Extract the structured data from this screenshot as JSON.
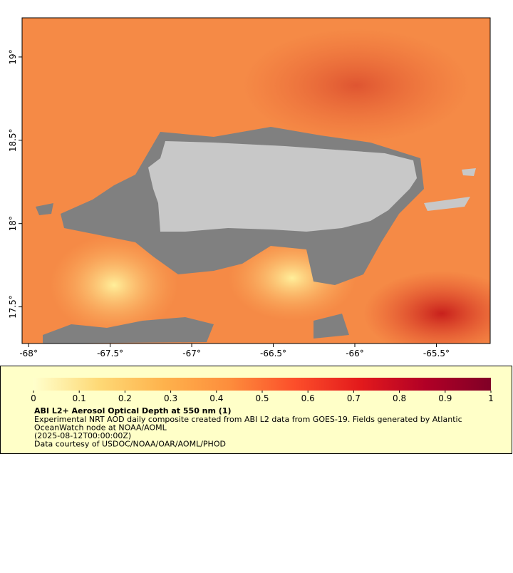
{
  "map": {
    "xlim": [
      -68.04,
      -65.17
    ],
    "ylim": [
      17.28,
      19.235
    ],
    "xticks": [
      {
        "value": -68,
        "label": "-68°"
      },
      {
        "value": -67.5,
        "label": "-67.5°"
      },
      {
        "value": -67,
        "label": "-67°"
      },
      {
        "value": -66.5,
        "label": "-66.5°"
      },
      {
        "value": -66,
        "label": "-66°"
      },
      {
        "value": -65.5,
        "label": "-65.5°"
      }
    ],
    "yticks": [
      {
        "value": 17.5,
        "label": "17.5°"
      },
      {
        "value": 18,
        "label": "18°"
      },
      {
        "value": 18.5,
        "label": "18.5°"
      },
      {
        "value": 19,
        "label": "19°"
      }
    ]
  },
  "colorbar": {
    "lim": [
      0,
      1
    ],
    "ticks": [
      0,
      0.1,
      0.2,
      0.3,
      0.4,
      0.5,
      0.6,
      0.7,
      0.8,
      0.9,
      1
    ],
    "colors": [
      "#ffffcc",
      "#fed976",
      "#feb24c",
      "#fd8d3c",
      "#fc4e2a",
      "#e31a1c",
      "#b10026",
      "#800026"
    ]
  },
  "caption": {
    "title": "ABI L2+ Aerosol Optical Depth at 550 nm (1)",
    "lines": [
      "Experimental NRT AOD daily composite created from ABI L2 data from GOES-19. Fields generated by Atlantic",
      "OceanWatch node at NOAA/AOML",
      "(2025-08-12T00:00:00Z)",
      "Data courtesy of USDOC/NOAA/OAR/AOML/PHOD"
    ]
  }
}
